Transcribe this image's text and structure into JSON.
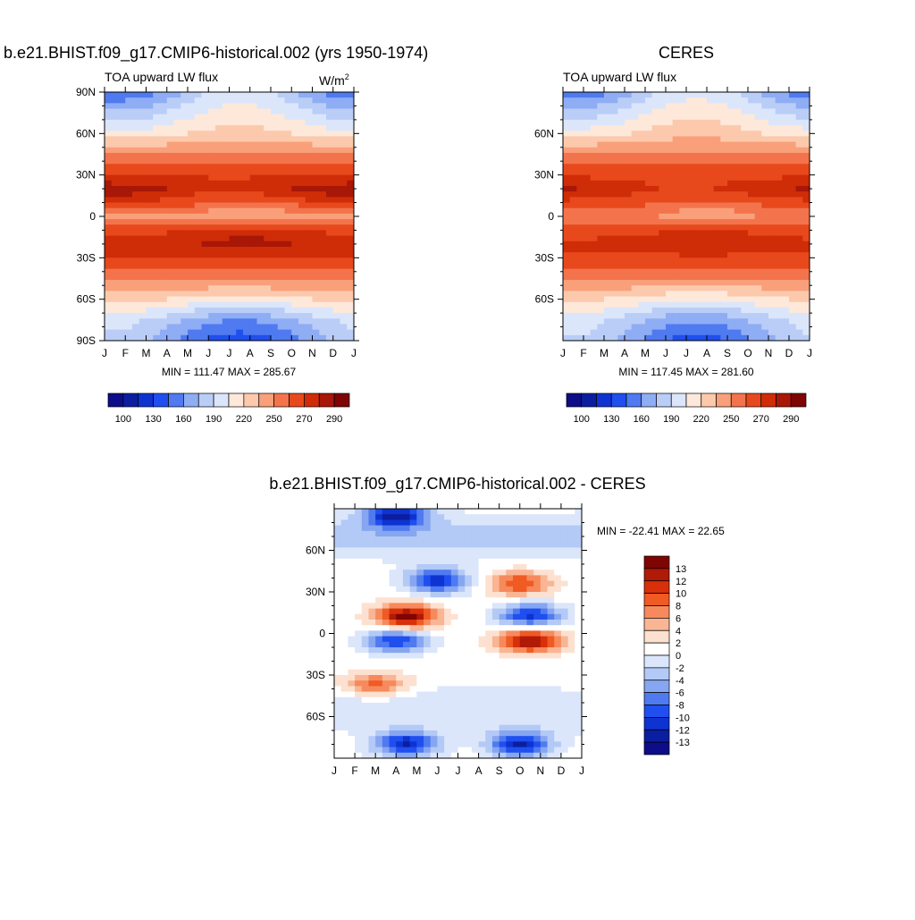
{
  "colors": {
    "main_scale": [
      "#0d0d8a",
      "#0b1ea0",
      "#0e33d1",
      "#1f4fee",
      "#4f7af0",
      "#8fadf4",
      "#b9cdf7",
      "#dbe6fb",
      "#fde8da",
      "#fcc9ad",
      "#f9a07a",
      "#f3744c",
      "#e8491c",
      "#cf2c08",
      "#a81707",
      "#7f0404"
    ],
    "diff_scale": [
      "#7f0404",
      "#b01a06",
      "#d8300a",
      "#f05a23",
      "#f68a5c",
      "#f9b594",
      "#fde1d0",
      "#ffffff",
      "#dbe6fb",
      "#b3c9f6",
      "#87a6f1",
      "#4f7af0",
      "#1f4fee",
      "#0e33d1",
      "#0b1ea0",
      "#0d0d8a"
    ]
  },
  "panels": {
    "model": {
      "title": "b.e21.BHIST.f09_g17.CMIP6-historical.002 (yrs 1950-1974)",
      "left_label": "TOA upward LW flux",
      "units": "W/m",
      "units_sup": "2",
      "stats": "MIN = 111.47 MAX = 285.67"
    },
    "obs": {
      "title": "CERES",
      "left_label": "TOA upward LW flux",
      "stats": "MIN = 117.45 MAX = 281.60"
    },
    "diff": {
      "title": "b.e21.BHIST.f09_g17.CMIP6-historical.002 - CERES",
      "stats": "MIN = -22.41 MAX =  22.65"
    }
  },
  "colorbars": {
    "main_labels": [
      "100",
      "130",
      "160",
      "190",
      "220",
      "250",
      "270",
      "290"
    ],
    "diff_labels": [
      "13",
      "12",
      "10",
      "8",
      "6",
      "4",
      "2",
      "0",
      "-2",
      "-4",
      "-6",
      "-8",
      "-10",
      "-12",
      "-13"
    ]
  },
  "chart_data": [
    {
      "type": "heatmap",
      "title": "b.e21.BHIST.f09_g17.CMIP6-historical.002 (yrs 1950-1974)",
      "subtitle": "TOA upward LW flux",
      "units": "W/m2",
      "x_ticks": [
        "J",
        "F",
        "M",
        "A",
        "M",
        "J",
        "J",
        "A",
        "S",
        "O",
        "N",
        "D",
        "J"
      ],
      "y_ticks": [
        "90N",
        "60N",
        "30N",
        "0",
        "30S",
        "60S",
        "90S"
      ],
      "ylim": [
        -90,
        90
      ],
      "min": 111.47,
      "max": 285.67,
      "levels": [
        100,
        130,
        160,
        190,
        220,
        250,
        270,
        290
      ],
      "zonal_profile": {
        "lat": [
          90,
          75,
          60,
          45,
          30,
          20,
          10,
          0,
          -10,
          -20,
          -30,
          -45,
          -60,
          -75,
          -90
        ],
        "values": [
          175,
          195,
          215,
          245,
          268,
          282,
          265,
          240,
          265,
          278,
          270,
          248,
          215,
          180,
          165
        ]
      }
    },
    {
      "type": "heatmap",
      "title": "CERES",
      "subtitle": "TOA upward LW flux",
      "x_ticks": [
        "J",
        "F",
        "M",
        "A",
        "M",
        "J",
        "J",
        "A",
        "S",
        "O",
        "N",
        "D",
        "J"
      ],
      "y_ticks": [
        "60N",
        "30N",
        "0",
        "30S",
        "60S"
      ],
      "ylim": [
        -90,
        90
      ],
      "min": 117.45,
      "max": 281.6,
      "levels": [
        100,
        130,
        160,
        190,
        220,
        250,
        270,
        290
      ],
      "zonal_profile": {
        "lat": [
          90,
          75,
          60,
          45,
          30,
          20,
          10,
          0,
          -10,
          -20,
          -30,
          -45,
          -60,
          -75,
          -90
        ],
        "values": [
          178,
          198,
          218,
          246,
          266,
          275,
          262,
          245,
          262,
          273,
          266,
          245,
          212,
          182,
          168
        ]
      }
    },
    {
      "type": "heatmap",
      "title": "b.e21.BHIST.f09_g17.CMIP6-historical.002 - CERES",
      "x_ticks": [
        "J",
        "F",
        "M",
        "A",
        "M",
        "J",
        "J",
        "A",
        "S",
        "O",
        "N",
        "D",
        "J"
      ],
      "y_ticks": [
        "60N",
        "30N",
        "0",
        "30S",
        "60S"
      ],
      "ylim": [
        -90,
        90
      ],
      "min": -22.41,
      "max": 22.65,
      "levels": [
        13,
        12,
        10,
        8,
        6,
        4,
        2,
        0,
        -2,
        -4,
        -6,
        -8,
        -10,
        -12,
        -13
      ],
      "features": [
        {
          "month": 3.5,
          "lat": 12,
          "value": 14
        },
        {
          "month": 3.0,
          "lat": -5,
          "value": -11
        },
        {
          "month": 9.5,
          "lat": 13,
          "value": -12
        },
        {
          "month": 9.5,
          "lat": -5,
          "value": 13
        },
        {
          "month": 9.0,
          "lat": 36,
          "value": 9
        },
        {
          "month": 5.0,
          "lat": 38,
          "value": -12
        },
        {
          "month": 3.0,
          "lat": 85,
          "value": -13
        },
        {
          "month": 3.5,
          "lat": -80,
          "value": -13
        },
        {
          "month": 9.0,
          "lat": -80,
          "value": -13
        },
        {
          "month": 2.0,
          "lat": -37,
          "value": 8
        }
      ]
    }
  ]
}
